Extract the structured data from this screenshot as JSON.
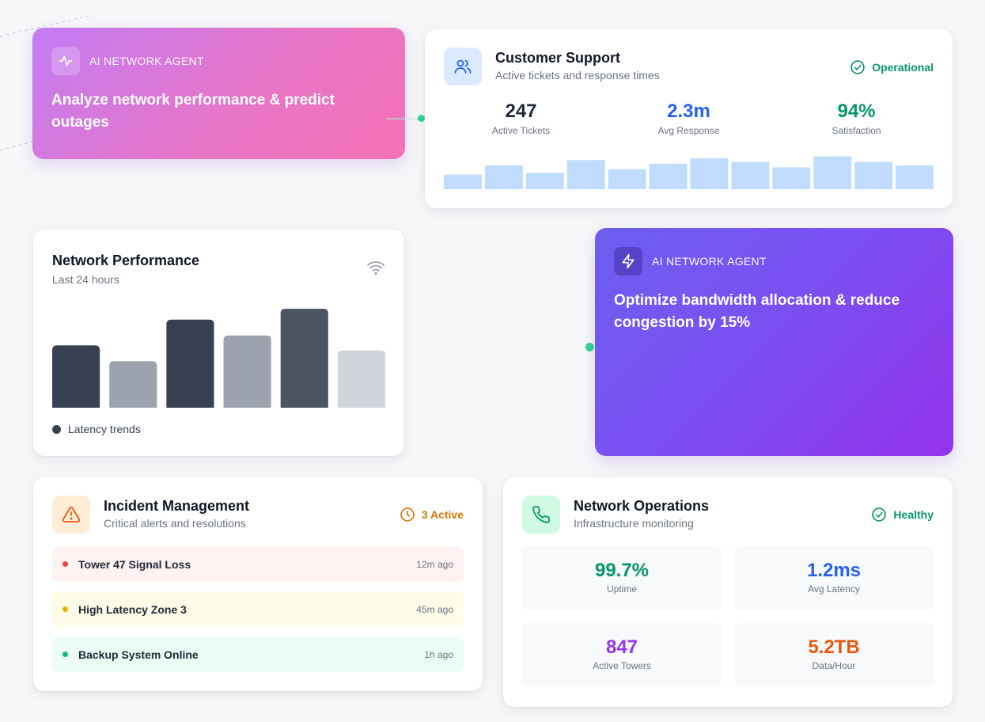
{
  "agent1": {
    "kicker": "AI NETWORK AGENT",
    "text": "Analyze network performance & predict outages",
    "icon": "activity-icon"
  },
  "agent2": {
    "kicker": "AI NETWORK AGENT",
    "text": "Optimize bandwidth allocation & reduce congestion by 15%",
    "icon": "zap-icon"
  },
  "support": {
    "title": "Customer Support",
    "subtitle": "Active tickets and response times",
    "status": "Operational",
    "icon": "users-icon",
    "stats": [
      {
        "value": "247",
        "label": "Active Tickets",
        "color": "#1f2937"
      },
      {
        "value": "2.3m",
        "label": "Avg Response",
        "color": "#2563eb"
      },
      {
        "value": "94%",
        "label": "Satisfaction",
        "color": "#059669"
      }
    ],
    "bars": [
      0.4,
      0.65,
      0.45,
      0.8,
      0.55,
      0.7,
      0.85,
      0.75,
      0.6,
      0.9,
      0.75,
      0.65
    ]
  },
  "performance": {
    "title": "Network Performance",
    "subtitle": "Last 24 hours",
    "legend": "Latency trends",
    "icon": "wifi-icon",
    "bars": [
      {
        "value": 0.63,
        "color": "#374151"
      },
      {
        "value": 0.47,
        "color": "#9ca3af"
      },
      {
        "value": 0.89,
        "color": "#374151"
      },
      {
        "value": 0.73,
        "color": "#9ca3af"
      },
      {
        "value": 1.0,
        "color": "#4b5563"
      },
      {
        "value": 0.58,
        "color": "#d1d5db"
      }
    ]
  },
  "incidents": {
    "title": "Incident Management",
    "subtitle": "Critical alerts and resolutions",
    "status": "3 Active",
    "icon": "alert-triangle-icon",
    "items": [
      {
        "label": "Tower 47 Signal Loss",
        "time": "12m ago",
        "bg": "#fef2f2",
        "dot": "#ef4444"
      },
      {
        "label": "High Latency Zone 3",
        "time": "45m ago",
        "bg": "#fefce8",
        "dot": "#eab308"
      },
      {
        "label": "Backup System Online",
        "time": "1h ago",
        "bg": "#ecfdf5",
        "dot": "#10b981"
      }
    ]
  },
  "operations": {
    "title": "Network Operations",
    "subtitle": "Infrastructure monitoring",
    "status": "Healthy",
    "icon": "phone-icon",
    "metrics": [
      {
        "value": "99.7%",
        "label": "Uptime",
        "color": "#059669"
      },
      {
        "value": "1.2ms",
        "label": "Avg Latency",
        "color": "#2563eb"
      },
      {
        "value": "847",
        "label": "Active Towers",
        "color": "#9333ea"
      },
      {
        "value": "5.2TB",
        "label": "Data/Hour",
        "color": "#ea580c"
      }
    ]
  }
}
